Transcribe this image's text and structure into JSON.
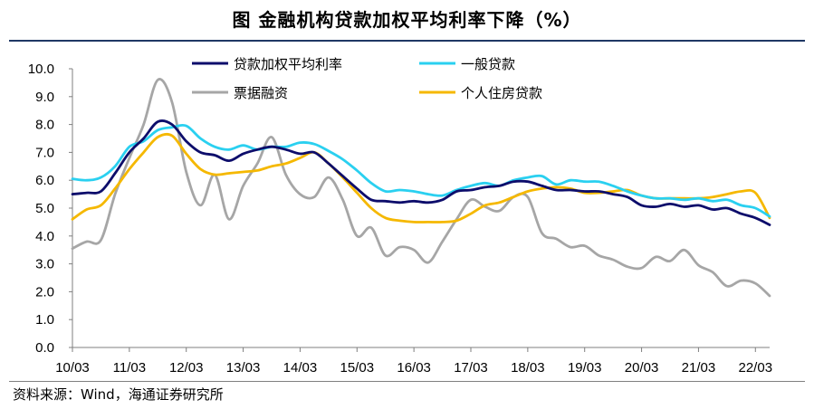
{
  "page": {
    "title": "图    金融机构贷款加权平均利率下降（%）",
    "source": "资料来源：Wind，海通证券研究所"
  },
  "chart_data": {
    "type": "line",
    "title": "金融机构贷款加权平均利率下降（%）",
    "xlabel": "",
    "ylabel": "",
    "ylim": [
      0,
      10
    ],
    "yticks": [
      "0.0",
      "1.0",
      "2.0",
      "3.0",
      "4.0",
      "5.0",
      "6.0",
      "7.0",
      "8.0",
      "9.0",
      "10.0"
    ],
    "categories": [
      "10/03",
      "11/03",
      "12/03",
      "13/03",
      "14/03",
      "15/03",
      "16/03",
      "17/03",
      "18/03",
      "19/03",
      "20/03",
      "21/03",
      "22/03"
    ],
    "x_start": 2010.25,
    "x_end": 2022.5,
    "grid": false,
    "legend_position": "top",
    "series": [
      {
        "name": "贷款加权平均利率",
        "color": "#0d0d6b",
        "x": [
          2010.25,
          2010.5,
          2010.75,
          2011.0,
          2011.25,
          2011.5,
          2011.75,
          2012.0,
          2012.25,
          2012.5,
          2012.75,
          2013.0,
          2013.25,
          2013.5,
          2013.75,
          2014.0,
          2014.25,
          2014.5,
          2014.75,
          2015.0,
          2015.25,
          2015.5,
          2015.75,
          2016.0,
          2016.25,
          2016.5,
          2016.75,
          2017.0,
          2017.25,
          2017.5,
          2017.75,
          2018.0,
          2018.25,
          2018.5,
          2018.75,
          2019.0,
          2019.25,
          2019.5,
          2019.75,
          2020.0,
          2020.25,
          2020.5,
          2020.75,
          2021.0,
          2021.25,
          2021.5,
          2021.75,
          2022.0,
          2022.25,
          2022.5
        ],
        "values": [
          5.5,
          5.55,
          5.6,
          6.25,
          7.0,
          7.5,
          8.1,
          8.0,
          7.4,
          7.0,
          6.9,
          6.7,
          6.95,
          7.1,
          7.2,
          7.1,
          6.95,
          7.0,
          6.6,
          6.15,
          5.7,
          5.3,
          5.25,
          5.2,
          5.25,
          5.2,
          5.3,
          5.6,
          5.65,
          5.75,
          5.8,
          5.95,
          5.95,
          5.8,
          5.65,
          5.65,
          5.6,
          5.6,
          5.5,
          5.4,
          5.1,
          5.05,
          5.15,
          5.05,
          5.1,
          4.95,
          5.0,
          4.8,
          4.65,
          4.4
        ]
      },
      {
        "name": "一般贷款",
        "color": "#2ad0f0",
        "x": [
          2010.25,
          2010.5,
          2010.75,
          2011.0,
          2011.25,
          2011.5,
          2011.75,
          2012.0,
          2012.25,
          2012.5,
          2012.75,
          2013.0,
          2013.25,
          2013.5,
          2013.75,
          2014.0,
          2014.25,
          2014.5,
          2014.75,
          2015.0,
          2015.25,
          2015.5,
          2015.75,
          2016.0,
          2016.25,
          2016.5,
          2016.75,
          2017.0,
          2017.25,
          2017.5,
          2017.75,
          2018.0,
          2018.25,
          2018.5,
          2018.75,
          2019.0,
          2019.25,
          2019.5,
          2019.75,
          2020.0,
          2020.25,
          2020.5,
          2020.75,
          2021.0,
          2021.25,
          2021.5,
          2021.75,
          2022.0,
          2022.25,
          2022.5
        ],
        "values": [
          6.05,
          6.0,
          6.1,
          6.5,
          7.2,
          7.4,
          7.8,
          7.9,
          7.95,
          7.5,
          7.2,
          7.1,
          7.25,
          7.1,
          7.2,
          7.2,
          7.35,
          7.3,
          7.05,
          6.75,
          6.35,
          5.9,
          5.6,
          5.65,
          5.6,
          5.5,
          5.45,
          5.65,
          5.8,
          5.9,
          5.8,
          6.0,
          6.1,
          6.15,
          5.85,
          6.0,
          5.95,
          5.95,
          5.8,
          5.6,
          5.45,
          5.35,
          5.35,
          5.3,
          5.35,
          5.25,
          5.3,
          5.1,
          5.0,
          4.7
        ]
      },
      {
        "name": "票据融资",
        "color": "#a6a6a6",
        "x": [
          2010.25,
          2010.5,
          2010.75,
          2011.0,
          2011.25,
          2011.5,
          2011.75,
          2012.0,
          2012.25,
          2012.5,
          2012.75,
          2013.0,
          2013.25,
          2013.5,
          2013.75,
          2014.0,
          2014.25,
          2014.5,
          2014.75,
          2015.0,
          2015.25,
          2015.5,
          2015.75,
          2016.0,
          2016.25,
          2016.5,
          2016.75,
          2017.0,
          2017.25,
          2017.5,
          2017.75,
          2018.0,
          2018.25,
          2018.5,
          2018.75,
          2019.0,
          2019.25,
          2019.5,
          2019.75,
          2020.0,
          2020.25,
          2020.5,
          2020.75,
          2021.0,
          2021.25,
          2021.5,
          2021.75,
          2022.0,
          2022.25,
          2022.5
        ],
        "values": [
          3.55,
          3.8,
          3.85,
          5.5,
          6.8,
          8.0,
          9.6,
          8.8,
          6.3,
          5.1,
          6.2,
          4.6,
          5.8,
          6.6,
          7.55,
          6.2,
          5.5,
          5.4,
          6.1,
          5.3,
          4.0,
          4.3,
          3.3,
          3.6,
          3.5,
          3.05,
          3.8,
          4.6,
          5.3,
          5.05,
          4.9,
          5.4,
          5.4,
          4.1,
          3.9,
          3.6,
          3.65,
          3.3,
          3.15,
          2.9,
          2.85,
          3.25,
          3.1,
          3.5,
          2.95,
          2.7,
          2.2,
          2.4,
          2.3,
          1.85
        ]
      },
      {
        "name": "个人住房贷款",
        "color": "#f5b800",
        "x": [
          2010.25,
          2010.5,
          2010.75,
          2011.0,
          2011.25,
          2011.5,
          2011.75,
          2012.0,
          2012.25,
          2012.5,
          2012.75,
          2013.0,
          2013.25,
          2013.5,
          2013.75,
          2014.0,
          2014.25,
          2014.5,
          2014.75,
          2015.0,
          2015.25,
          2015.5,
          2015.75,
          2016.0,
          2016.25,
          2016.5,
          2016.75,
          2017.0,
          2017.25,
          2017.5,
          2017.75,
          2018.0,
          2018.25,
          2018.5,
          2018.75,
          2019.0,
          2019.25,
          2019.5,
          2019.75,
          2020.0,
          2020.25,
          2020.5,
          2020.75,
          2021.0,
          2021.25,
          2021.5,
          2021.75,
          2022.0,
          2022.25,
          2022.5
        ],
        "values": [
          4.6,
          4.95,
          5.1,
          5.7,
          6.4,
          7.0,
          7.55,
          7.6,
          6.95,
          6.4,
          6.2,
          6.25,
          6.3,
          6.35,
          6.5,
          6.6,
          6.8,
          7.0,
          6.6,
          6.1,
          5.55,
          5.0,
          4.65,
          4.55,
          4.5,
          4.5,
          4.5,
          4.55,
          4.8,
          5.1,
          5.2,
          5.4,
          5.6,
          5.7,
          5.75,
          5.7,
          5.55,
          5.55,
          5.6,
          5.65,
          5.45,
          5.35,
          5.35,
          5.35,
          5.35,
          5.4,
          5.5,
          5.6,
          5.55,
          4.65
        ]
      }
    ]
  }
}
